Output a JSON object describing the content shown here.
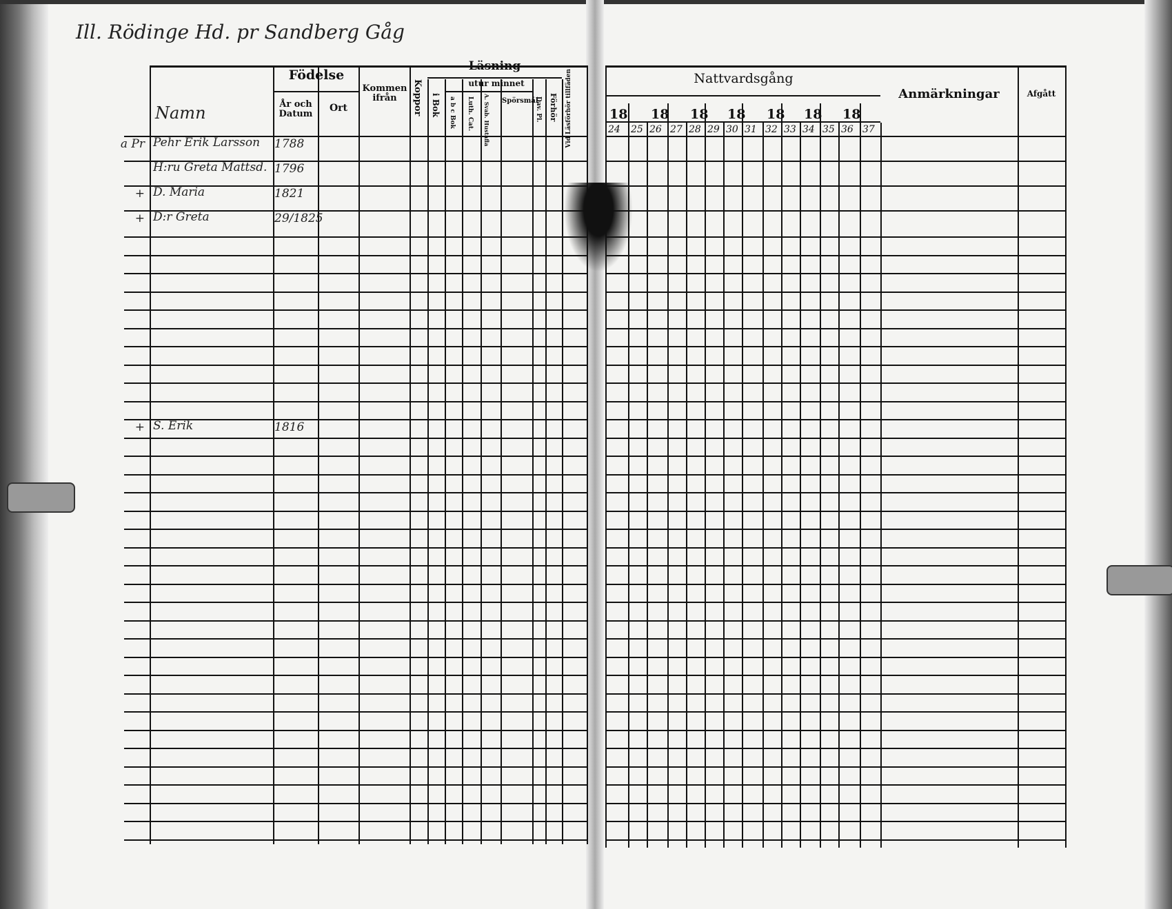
{
  "page_heading": "Ill. Rödinge Hd. pr Sandberg Gåg",
  "left_table": {
    "name_header": "Namn",
    "fodelse": "Födelse",
    "ar_och_datum": "År och Datum",
    "ort": "Ort",
    "kommen_ifran": "Kommen ifrån",
    "koppor": "Koppor",
    "lasning": "Läsning",
    "utur_minnet": "utur minnet",
    "i_bok": "i Bok",
    "abc_bok": "a b c Bok",
    "luth_cat": "Luth. Cat.",
    "a_svab": "A. Svab. Hustafla",
    "sporsmal": "Spörsmål",
    "dav_pl": "Dav. Pl.",
    "forhor": "Förhör",
    "vid_lasforhor": "Vid Läsförhör tillfäden"
  },
  "right_table": {
    "nattvardsgang": "Nattvardsgång",
    "year_prefix": [
      "18",
      "18",
      "18",
      "18",
      "18",
      "18",
      "18"
    ],
    "years": [
      "24",
      "25",
      "26",
      "27",
      "28",
      "29",
      "30",
      "31",
      "32",
      "33",
      "34",
      "35",
      "36",
      "37"
    ],
    "anmarkningar": "Anmärkningar",
    "afgatt": "Afgått"
  },
  "entries": [
    {
      "mark": "a Pr",
      "name": "Pehr Erik Larsson",
      "born": "1788"
    },
    {
      "mark": "",
      "name": "H:ru Greta Mattsd.",
      "born": "1796"
    },
    {
      "mark": "+",
      "name": "D. Maria",
      "born": "1821"
    },
    {
      "mark": "+",
      "name": "D:r Greta",
      "born": "29/1825"
    },
    {
      "mark": "+",
      "name": "S. Erik",
      "born": "1816"
    }
  ]
}
